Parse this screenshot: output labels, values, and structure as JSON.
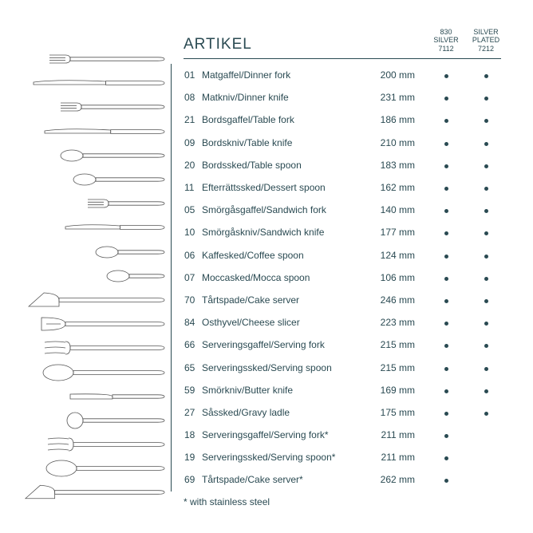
{
  "title": "ARTIKEL",
  "columns": {
    "c1": {
      "l1": "830",
      "l2": "SILVER",
      "l3": "7112"
    },
    "c2": {
      "l1": "SILVER",
      "l2": "PLATED",
      "l3": "7212"
    }
  },
  "rows": [
    {
      "num": "01",
      "name": "Matgaffel/Dinner fork",
      "size": "200 mm",
      "d1": true,
      "d2": true
    },
    {
      "num": "08",
      "name": "Matkniv/Dinner knife",
      "size": "231 mm",
      "d1": true,
      "d2": true
    },
    {
      "num": "21",
      "name": "Bordsgaffel/Table fork",
      "size": "186 mm",
      "d1": true,
      "d2": true
    },
    {
      "num": "09",
      "name": "Bordskniv/Table knife",
      "size": "210 mm",
      "d1": true,
      "d2": true
    },
    {
      "num": "20",
      "name": "Bordssked/Table spoon",
      "size": "183 mm",
      "d1": true,
      "d2": true
    },
    {
      "num": "11",
      "name": "Efterrättssked/Dessert spoon",
      "size": "162 mm",
      "d1": true,
      "d2": true
    },
    {
      "num": "05",
      "name": "Smörgåsgaffel/Sandwich fork",
      "size": "140 mm",
      "d1": true,
      "d2": true
    },
    {
      "num": "10",
      "name": "Smörgåskniv/Sandwich knife",
      "size": "177 mm",
      "d1": true,
      "d2": true
    },
    {
      "num": "06",
      "name": "Kaffesked/Coffee spoon",
      "size": "124 mm",
      "d1": true,
      "d2": true
    },
    {
      "num": "07",
      "name": "Moccasked/Mocca spoon",
      "size": "106 mm",
      "d1": true,
      "d2": true
    },
    {
      "num": "70",
      "name": "Tårtspade/Cake server",
      "size": "246 mm",
      "d1": true,
      "d2": true
    },
    {
      "num": "84",
      "name": "Osthyvel/Cheese slicer",
      "size": "223 mm",
      "d1": true,
      "d2": true
    },
    {
      "num": "66",
      "name": "Serveringsgaffel/Serving fork",
      "size": "215 mm",
      "d1": true,
      "d2": true
    },
    {
      "num": "65",
      "name": "Serveringssked/Serving spoon",
      "size": "215 mm",
      "d1": true,
      "d2": true
    },
    {
      "num": "59",
      "name": "Smörkniv/Butter knife",
      "size": "169 mm",
      "d1": true,
      "d2": true
    },
    {
      "num": "27",
      "name": "Såssked/Gravy ladle",
      "size": "175 mm",
      "d1": true,
      "d2": true
    },
    {
      "num": "18",
      "name": "Serveringsgaffel/Serving fork*",
      "size": "211 mm",
      "d1": true,
      "d2": false
    },
    {
      "num": "19",
      "name": "Serveringssked/Serving spoon*",
      "size": "211 mm",
      "d1": true,
      "d2": false
    },
    {
      "num": "69",
      "name": "Tårtspade/Cake server*",
      "size": "262 mm",
      "d1": true,
      "d2": false
    }
  ],
  "footnote": "* with stainless steel",
  "colors": {
    "text": "#2a4a52",
    "line": "#2a4a52",
    "bg": "#ffffff",
    "illo": "#555555"
  },
  "illos": [
    {
      "kind": "fork",
      "len": 148
    },
    {
      "kind": "knife",
      "len": 168
    },
    {
      "kind": "fork",
      "len": 134
    },
    {
      "kind": "knife",
      "len": 154
    },
    {
      "kind": "spoon",
      "len": 134
    },
    {
      "kind": "spoon",
      "len": 118
    },
    {
      "kind": "fork",
      "len": 100
    },
    {
      "kind": "knife",
      "len": 128
    },
    {
      "kind": "spoon",
      "len": 90
    },
    {
      "kind": "spoon",
      "len": 76
    },
    {
      "kind": "server",
      "len": 176
    },
    {
      "kind": "slicer",
      "len": 160
    },
    {
      "kind": "sfork",
      "len": 156
    },
    {
      "kind": "sspoon",
      "len": 156
    },
    {
      "kind": "bknife",
      "len": 122
    },
    {
      "kind": "ladle",
      "len": 126
    },
    {
      "kind": "sfork",
      "len": 152
    },
    {
      "kind": "sspoon",
      "len": 152
    },
    {
      "kind": "server",
      "len": 186
    }
  ]
}
